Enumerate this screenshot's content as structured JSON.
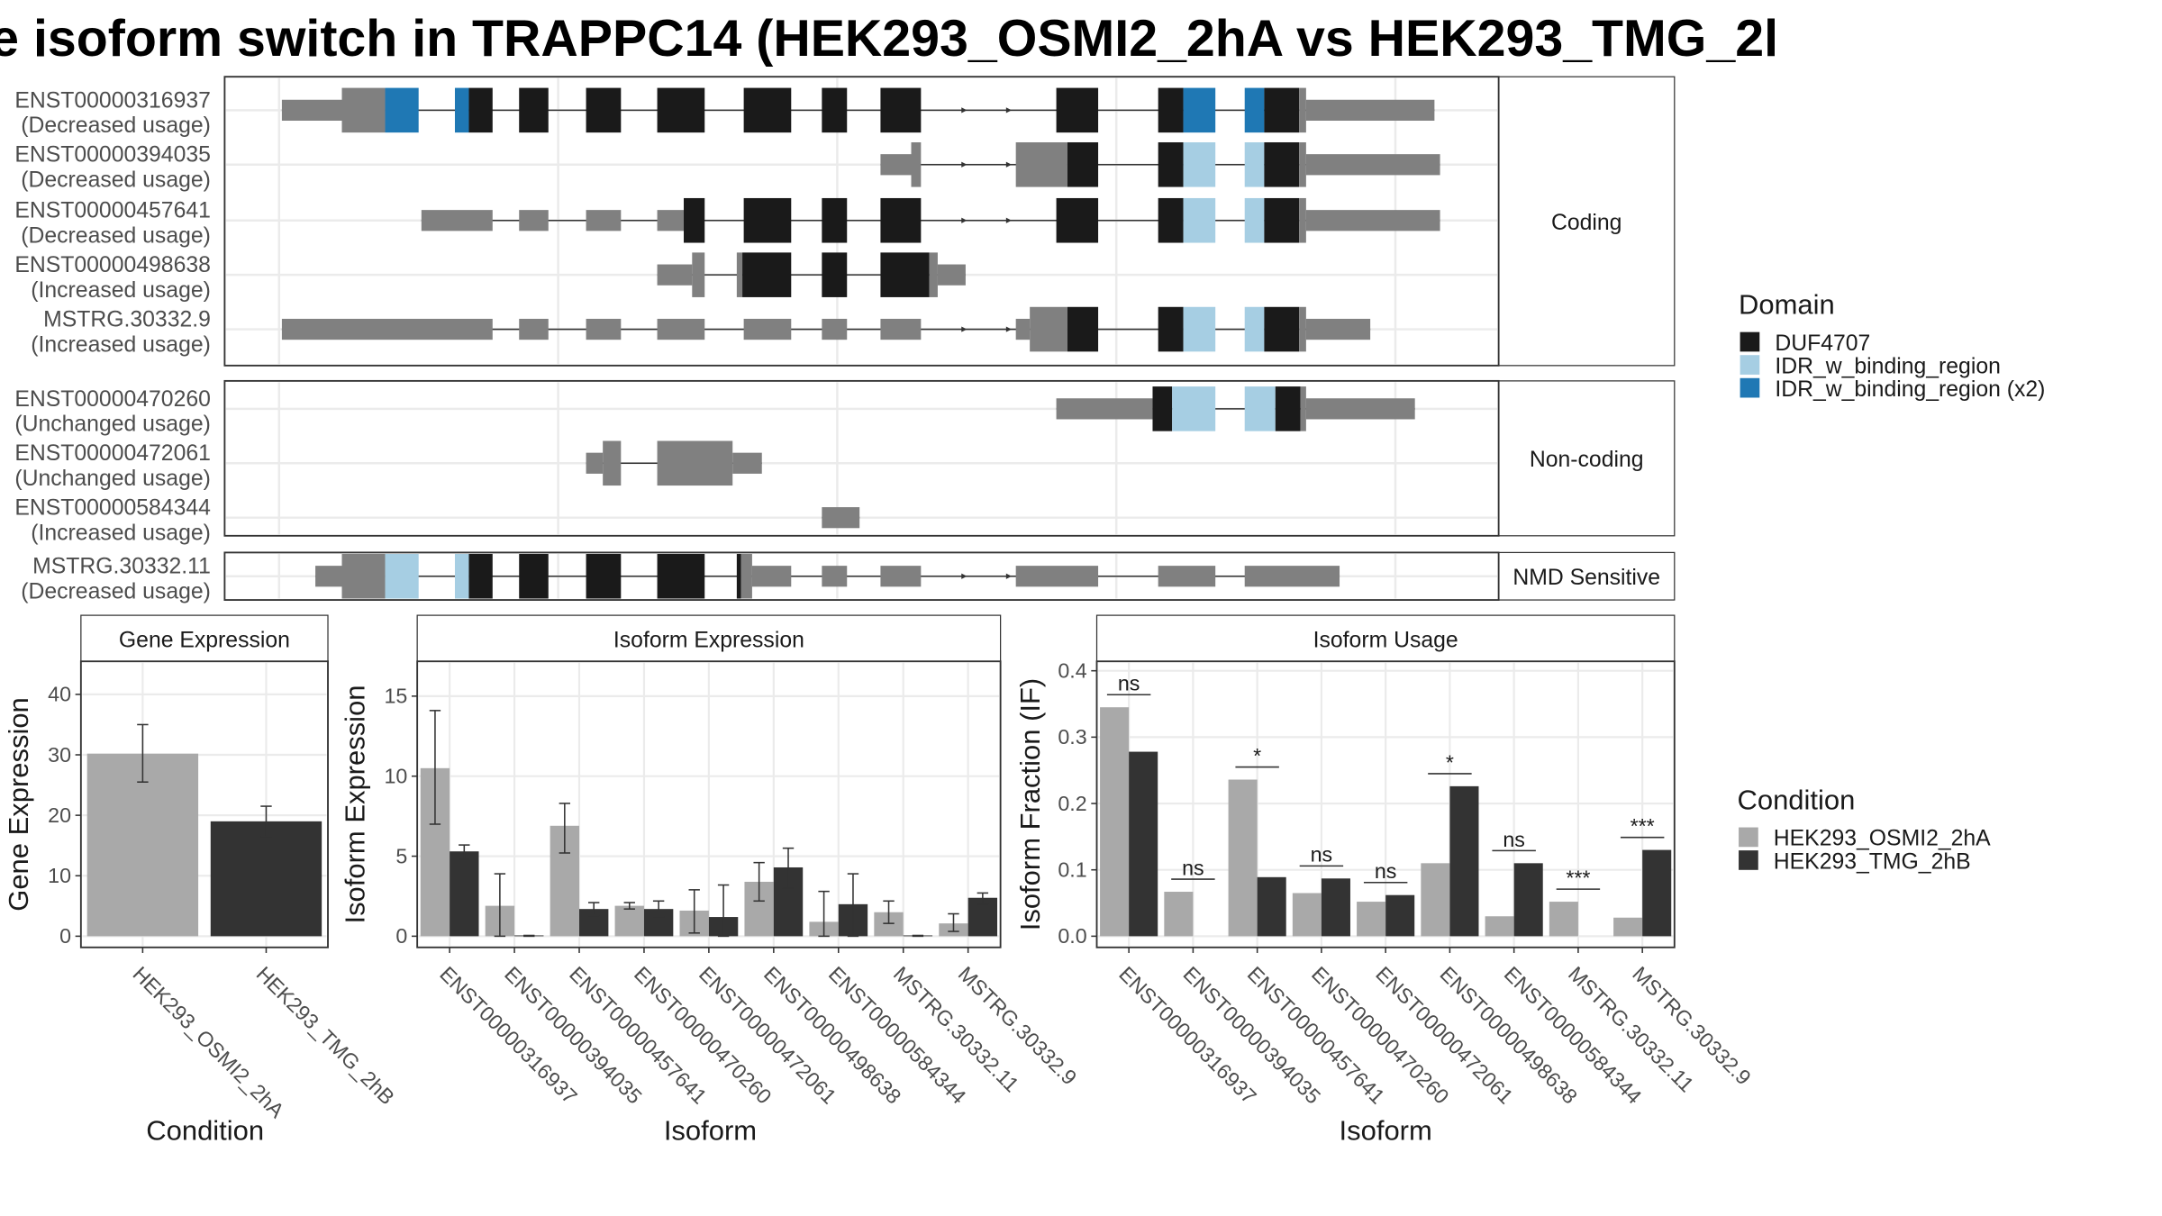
{
  "title": "e isoform switch in TRAPPC14 (HEK293_OSMI2_2hA vs HEK293_TMG_2l",
  "colors": {
    "duf": "#1a1a1a",
    "idr": "#a6cee3",
    "idr2": "#1f78b4",
    "noncoding": "#808080",
    "cond_a": "#a9a9a9",
    "cond_b": "#333333"
  },
  "transcripts": {
    "facets": [
      {
        "label": "Coding",
        "rows": [
          {
            "id": "ENST00000316937",
            "usage": "(Decreased usage)"
          },
          {
            "id": "ENST00000394035",
            "usage": "(Decreased usage)"
          },
          {
            "id": "ENST00000457641",
            "usage": "(Decreased usage)"
          },
          {
            "id": "ENST00000498638",
            "usage": "(Increased usage)"
          },
          {
            "id": "MSTRG.30332.9",
            "usage": "(Increased usage)"
          }
        ]
      },
      {
        "label": "Non-coding",
        "rows": [
          {
            "id": "ENST00000470260",
            "usage": "(Unchanged usage)"
          },
          {
            "id": "ENST00000472061",
            "usage": "(Unchanged usage)"
          },
          {
            "id": "ENST00000584344",
            "usage": "(Increased usage)"
          }
        ]
      },
      {
        "label": "NMD Sensitive",
        "rows": [
          {
            "id": "MSTRG.30332.11",
            "usage": "(Decreased usage)"
          }
        ]
      }
    ],
    "domain_legend": {
      "title": "Domain",
      "items": [
        {
          "label": "DUF4707",
          "color": "duf"
        },
        {
          "label": "IDR_w_binding_region",
          "color": "idr"
        },
        {
          "label": "IDR_w_binding_region (x2)",
          "color": "idr2"
        }
      ]
    }
  },
  "chart_data": [
    {
      "type": "bar",
      "title": "Gene Expression",
      "xlabel": "Condition",
      "ylabel": "Gene Expression",
      "ylim": [
        0,
        45
      ],
      "yticks": [
        0,
        10,
        20,
        30,
        40
      ],
      "categories": [
        "HEK293_OSMI2_2hA",
        "HEK293_TMG_2hB"
      ],
      "values": [
        30.2,
        19.0
      ],
      "errors": [
        [
          25.5,
          35.0
        ],
        [
          16.5,
          21.5
        ]
      ]
    },
    {
      "type": "bar",
      "title": "Isoform Expression",
      "xlabel": "Isoform",
      "ylabel": "Isoform Expression",
      "ylim": [
        0,
        17
      ],
      "yticks": [
        0,
        5,
        10,
        15
      ],
      "categories": [
        "ENST00000316937",
        "ENST00000394035",
        "ENST00000457641",
        "ENST00000470260",
        "ENST00000472061",
        "ENST00000498638",
        "ENST00000584344",
        "MSTRG.30332.11",
        "MSTRG.30332.9"
      ],
      "series": [
        {
          "name": "HEK293_OSMI2_2hA",
          "values": [
            10.5,
            1.9,
            6.9,
            1.9,
            1.6,
            3.4,
            0.9,
            1.5,
            0.8
          ],
          "errors": [
            [
              7.0,
              14.1
            ],
            [
              0,
              3.9
            ],
            [
              5.2,
              8.3
            ],
            [
              1.7,
              2.1
            ],
            [
              0.2,
              2.9
            ],
            [
              2.2,
              4.6
            ],
            [
              0,
              2.8
            ],
            [
              0.8,
              2.2
            ],
            [
              0.3,
              1.4
            ]
          ]
        },
        {
          "name": "HEK293_TMG_2hB",
          "values": [
            5.3,
            0.05,
            1.7,
            1.7,
            1.2,
            4.3,
            2.0,
            0.05,
            2.4
          ],
          "errors": [
            [
              4.8,
              5.7
            ],
            [
              0,
              0.05
            ],
            [
              1.3,
              2.1
            ],
            [
              1.2,
              2.2
            ],
            [
              0,
              3.2
            ],
            [
              3.0,
              5.5
            ],
            [
              0,
              3.9
            ],
            [
              0,
              0.05
            ],
            [
              2.0,
              2.7
            ]
          ]
        }
      ]
    },
    {
      "type": "bar",
      "title": "Isoform Usage",
      "xlabel": "Isoform",
      "ylabel": "Isoform Fraction (IF)",
      "ylim": [
        0,
        0.41
      ],
      "yticks": [
        0.0,
        0.1,
        0.2,
        0.3,
        0.4
      ],
      "categories": [
        "ENST00000316937",
        "ENST00000394035",
        "ENST00000457641",
        "ENST00000470260",
        "ENST00000472061",
        "ENST00000498638",
        "ENST00000584344",
        "MSTRG.30332.11",
        "MSTRG.30332.9"
      ],
      "series": [
        {
          "name": "HEK293_OSMI2_2hA",
          "values": [
            0.345,
            0.067,
            0.236,
            0.065,
            0.052,
            0.11,
            0.03,
            0.052,
            0.028
          ]
        },
        {
          "name": "HEK293_TMG_2hB",
          "values": [
            0.278,
            0.0,
            0.089,
            0.087,
            0.062,
            0.226,
            0.11,
            0.0,
            0.13
          ]
        }
      ],
      "significance": [
        "ns",
        "ns",
        "*",
        "ns",
        "ns",
        "*",
        "ns",
        "***",
        "***"
      ]
    }
  ],
  "condition_legend": {
    "title": "Condition",
    "items": [
      {
        "label": "HEK293_OSMI2_2hA",
        "color": "cond_a"
      },
      {
        "label": "HEK293_TMG_2hB",
        "color": "cond_b"
      }
    ]
  }
}
